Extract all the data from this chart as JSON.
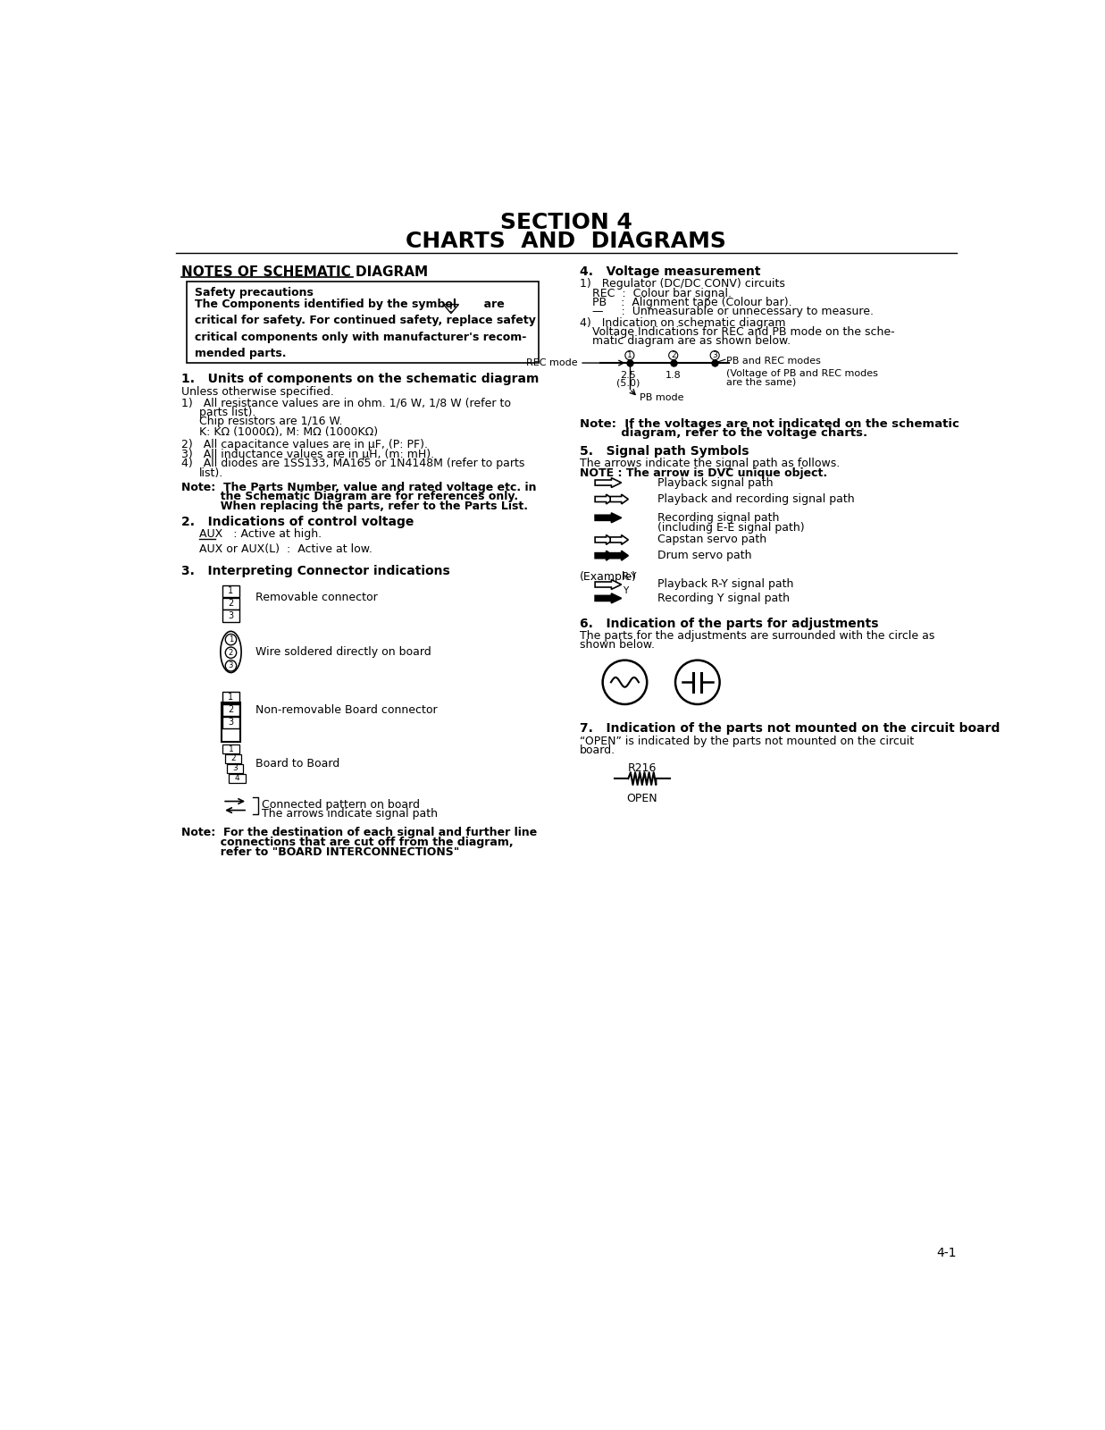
{
  "title_line1": "SECTION 4",
  "title_line2": "CHARTS  AND  DIAGRAMS",
  "section_header": "NOTES OF SCHEMATIC DIAGRAM",
  "bg_color": "#ffffff",
  "text_color": "#000000",
  "page_number": "4-1"
}
